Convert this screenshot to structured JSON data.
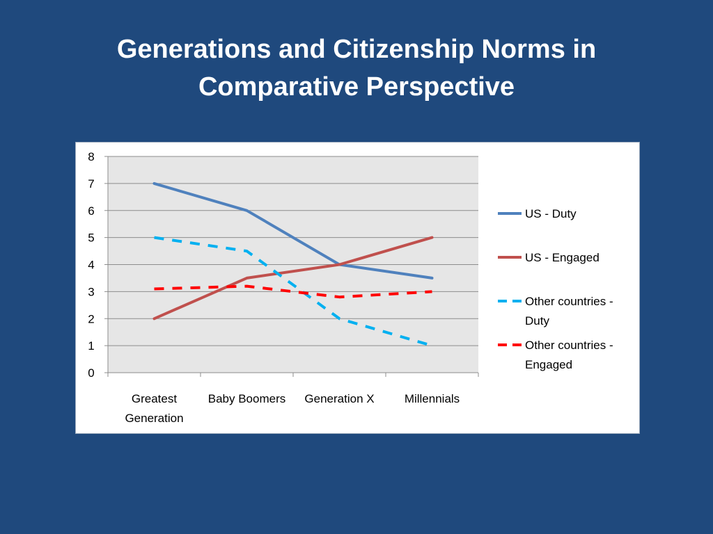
{
  "slide": {
    "title_line1": "Generations and Citizenship Norms in",
    "title_line2": "Comparative Perspective"
  },
  "chart_data": {
    "type": "line",
    "title": "",
    "xlabel": "",
    "ylabel": "",
    "ylim": [
      0,
      8
    ],
    "yticks": [
      0,
      1,
      2,
      3,
      4,
      5,
      6,
      7,
      8
    ],
    "grid": true,
    "legend_position": "right",
    "categories": [
      [
        "Greatest",
        "Generation"
      ],
      [
        "Baby Boomers"
      ],
      [
        "Generation X"
      ],
      [
        "Millennials"
      ]
    ],
    "series": [
      {
        "name": "US - Duty",
        "name_lines": [
          "US - Duty"
        ],
        "values": [
          7,
          6,
          4,
          3.5
        ],
        "color": "#4f81bd",
        "dashed": false
      },
      {
        "name": "US - Engaged",
        "name_lines": [
          "US - Engaged"
        ],
        "values": [
          2,
          3.5,
          4,
          5
        ],
        "color": "#c0504d",
        "dashed": false
      },
      {
        "name": "Other countries - Duty",
        "name_lines": [
          "Other countries -",
          "Duty"
        ],
        "values": [
          5,
          4.5,
          2,
          1
        ],
        "color": "#00b0f0",
        "dashed": true
      },
      {
        "name": "Other countries - Engaged",
        "name_lines": [
          "Other countries -",
          "Engaged"
        ],
        "values": [
          3.1,
          3.2,
          2.8,
          3
        ],
        "color": "#ff0000",
        "dashed": true
      }
    ],
    "plot_background": "#e6e6e6",
    "gridline_color": "#8c8c8c"
  }
}
